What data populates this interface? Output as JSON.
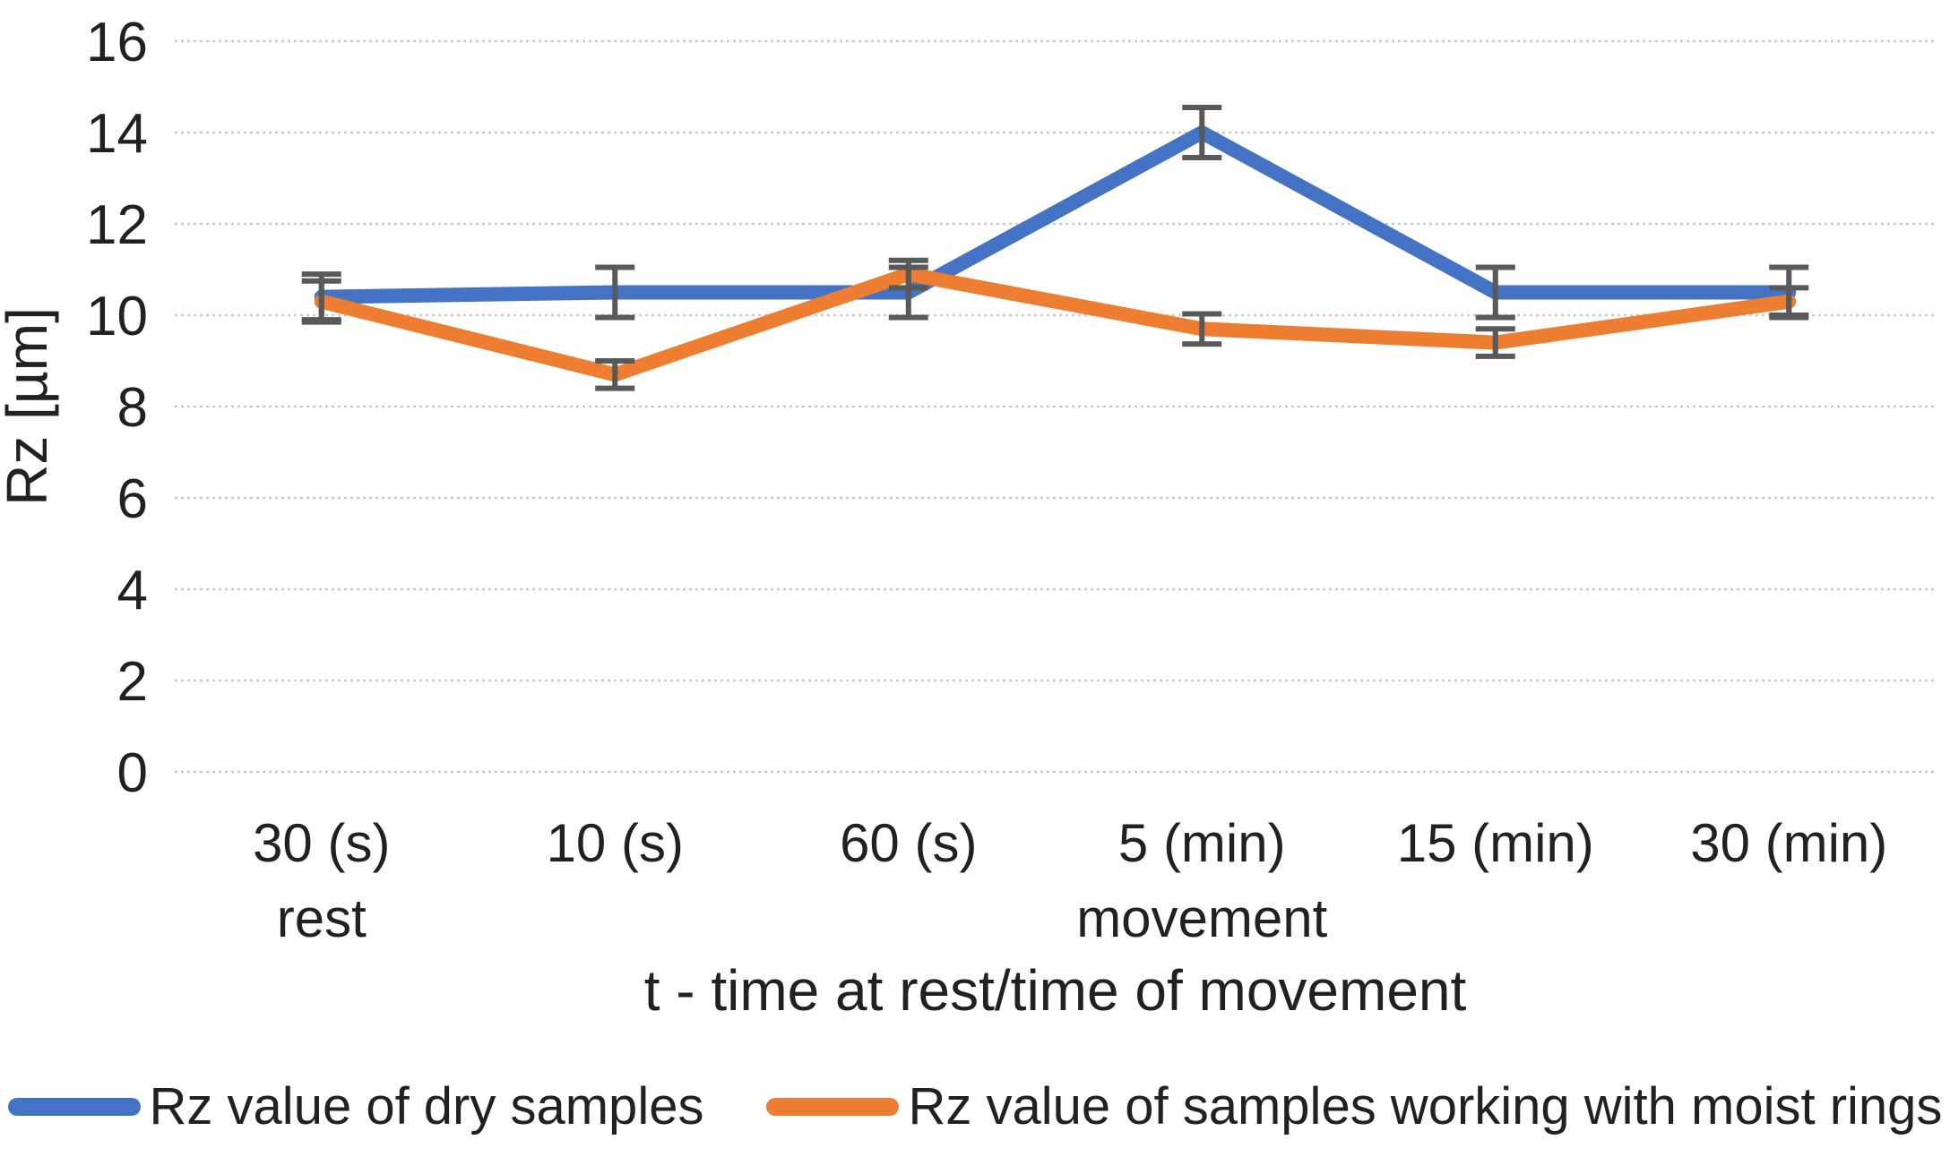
{
  "chart_data": {
    "type": "line",
    "title": "",
    "ylabel": "Rz [µm]",
    "xlabel": "t - time at rest/time of movement",
    "categories": [
      "30 (s)",
      "10 (s)",
      "60 (s)",
      "5 (min)",
      "15 (min)",
      "30 (min)"
    ],
    "category_sublabels": [
      "rest",
      "",
      "",
      "movement",
      "",
      ""
    ],
    "y_ticks": [
      0,
      2,
      4,
      6,
      8,
      10,
      12,
      14,
      16
    ],
    "ylim": [
      0,
      16
    ],
    "grid": "horizontal-dotted",
    "gridline_color": "#c9c9c9",
    "error_bar_color": "#595959",
    "legend_position": "bottom",
    "series": [
      {
        "name": "Rz value of dry samples",
        "color": "#4472C4",
        "values": [
          10.4,
          10.5,
          10.5,
          14.0,
          10.5,
          10.5
        ],
        "error": [
          0.5,
          0.55,
          0.55,
          0.55,
          0.55,
          0.55
        ]
      },
      {
        "name": "Rz value of samples working with moist rings",
        "color": "#ED7D31",
        "values": [
          10.3,
          8.7,
          10.9,
          9.7,
          9.4,
          10.3
        ],
        "error": [
          0.45,
          0.3,
          0.3,
          0.33,
          0.3,
          0.3
        ]
      }
    ]
  }
}
